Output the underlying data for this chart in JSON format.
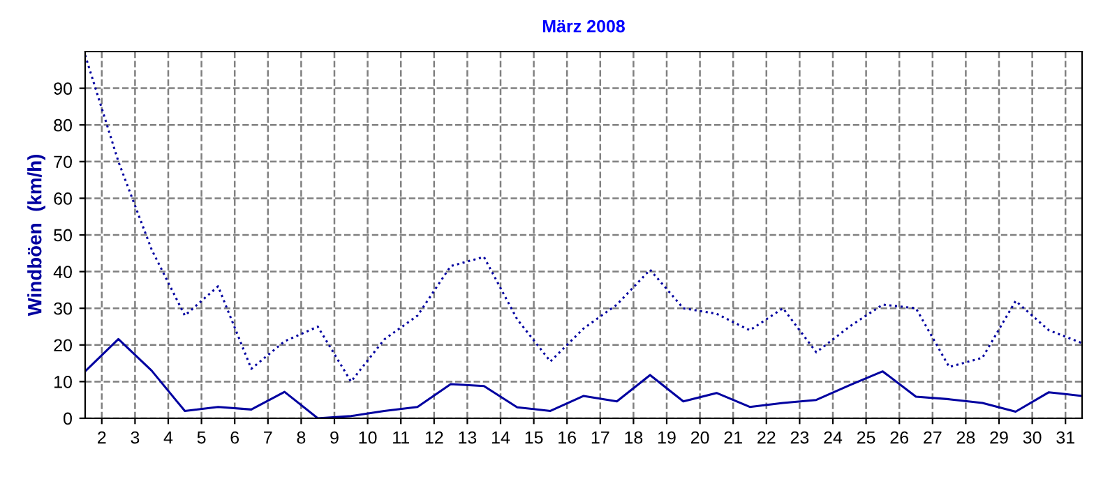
{
  "chart_data": {
    "type": "line",
    "title": "März 2008",
    "ylabel": "Windböen  (km/h)",
    "x": [
      1.5,
      2.5,
      3.5,
      4.5,
      5.5,
      6.5,
      7.5,
      8.5,
      9.5,
      10.5,
      11.5,
      12.5,
      13.5,
      14.5,
      15.5,
      16.5,
      17.5,
      18.5,
      19.5,
      20.5,
      21.5,
      22.5,
      23.5,
      24.5,
      25.5,
      26.5,
      27.5,
      28.5,
      29.5,
      30.5,
      31.5
    ],
    "series": [
      {
        "color": "#0000a0",
        "line_style": "dotted",
        "values": [
          99,
          70,
          46,
          28,
          36,
          13.5,
          21,
          25,
          10,
          21.5,
          28,
          41.5,
          44,
          27,
          15.5,
          24.5,
          31,
          40.5,
          30,
          28.5,
          24,
          30,
          18,
          25,
          31,
          30,
          14,
          16.5,
          32,
          24,
          20.5
        ]
      },
      {
        "color": "#0000a0",
        "line_style": "solid",
        "values": [
          12.8,
          21.6,
          13,
          2,
          3.1,
          2.4,
          7.2,
          0,
          0.6,
          2,
          3.1,
          9.3,
          8.8,
          3,
          2,
          6.1,
          4.6,
          11.8,
          4.6,
          6.9,
          3.1,
          4.2,
          5,
          9,
          12.8,
          5.9,
          5.2,
          4.2,
          1.8,
          7.1,
          6.1
        ]
      }
    ],
    "xlim": [
      1.5,
      31.5
    ],
    "xticks": [
      2,
      3,
      4,
      5,
      6,
      7,
      8,
      9,
      10,
      11,
      12,
      13,
      14,
      15,
      16,
      17,
      18,
      19,
      20,
      21,
      22,
      23,
      24,
      25,
      26,
      27,
      28,
      29,
      30,
      31
    ],
    "ylim": [
      0,
      100
    ],
    "yticks": [
      0,
      10,
      20,
      30,
      40,
      50,
      60,
      70,
      80,
      90
    ],
    "grid": true,
    "legend": false,
    "marker": "none"
  }
}
